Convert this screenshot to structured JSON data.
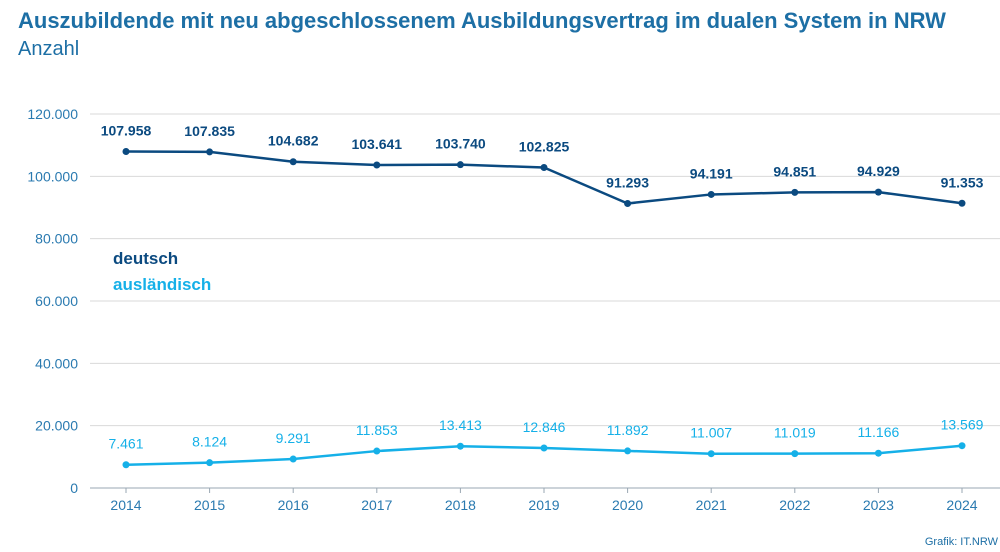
{
  "title": "Auszubildende mit neu abgeschlossenem Ausbildungsvertrag im dualen System in NRW",
  "subtitle": "Anzahl",
  "source": "Grafik: IT.NRW",
  "colors": {
    "deutsch": "#0b4a80",
    "auslaendisch": "#15b0e8",
    "grid": "#d9d9d9",
    "axis": "#2a7ab0"
  },
  "chart_data": {
    "type": "line",
    "categories": [
      "2014",
      "2015",
      "2016",
      "2017",
      "2018",
      "2019",
      "2020",
      "2021",
      "2022",
      "2023",
      "2024"
    ],
    "ylim": [
      0,
      120000
    ],
    "yticks": [
      0,
      20000,
      40000,
      60000,
      80000,
      100000,
      120000
    ],
    "ytick_labels": [
      "0",
      "20.000",
      "40.000",
      "60.000",
      "80.000",
      "100.000",
      "120.000"
    ],
    "grid": true,
    "legend_position": "left",
    "series": [
      {
        "name": "deutsch",
        "values": [
          107958,
          107835,
          104682,
          103641,
          103740,
          102825,
          91293,
          94191,
          94851,
          94929,
          91353
        ],
        "labels": [
          "107.958",
          "107.835",
          "104.682",
          "103.641",
          "103.740",
          "102.825",
          "91.293",
          "94.191",
          "94.851",
          "94.929",
          "91.353"
        ]
      },
      {
        "name": "ausländisch",
        "values": [
          7461,
          8124,
          9291,
          11853,
          13413,
          12846,
          11892,
          11007,
          11019,
          11166,
          13569
        ],
        "labels": [
          "7.461",
          "8.124",
          "9.291",
          "11.853",
          "13.413",
          "12.846",
          "11.892",
          "11.007",
          "11.019",
          "11.166",
          "13.569"
        ]
      }
    ]
  }
}
